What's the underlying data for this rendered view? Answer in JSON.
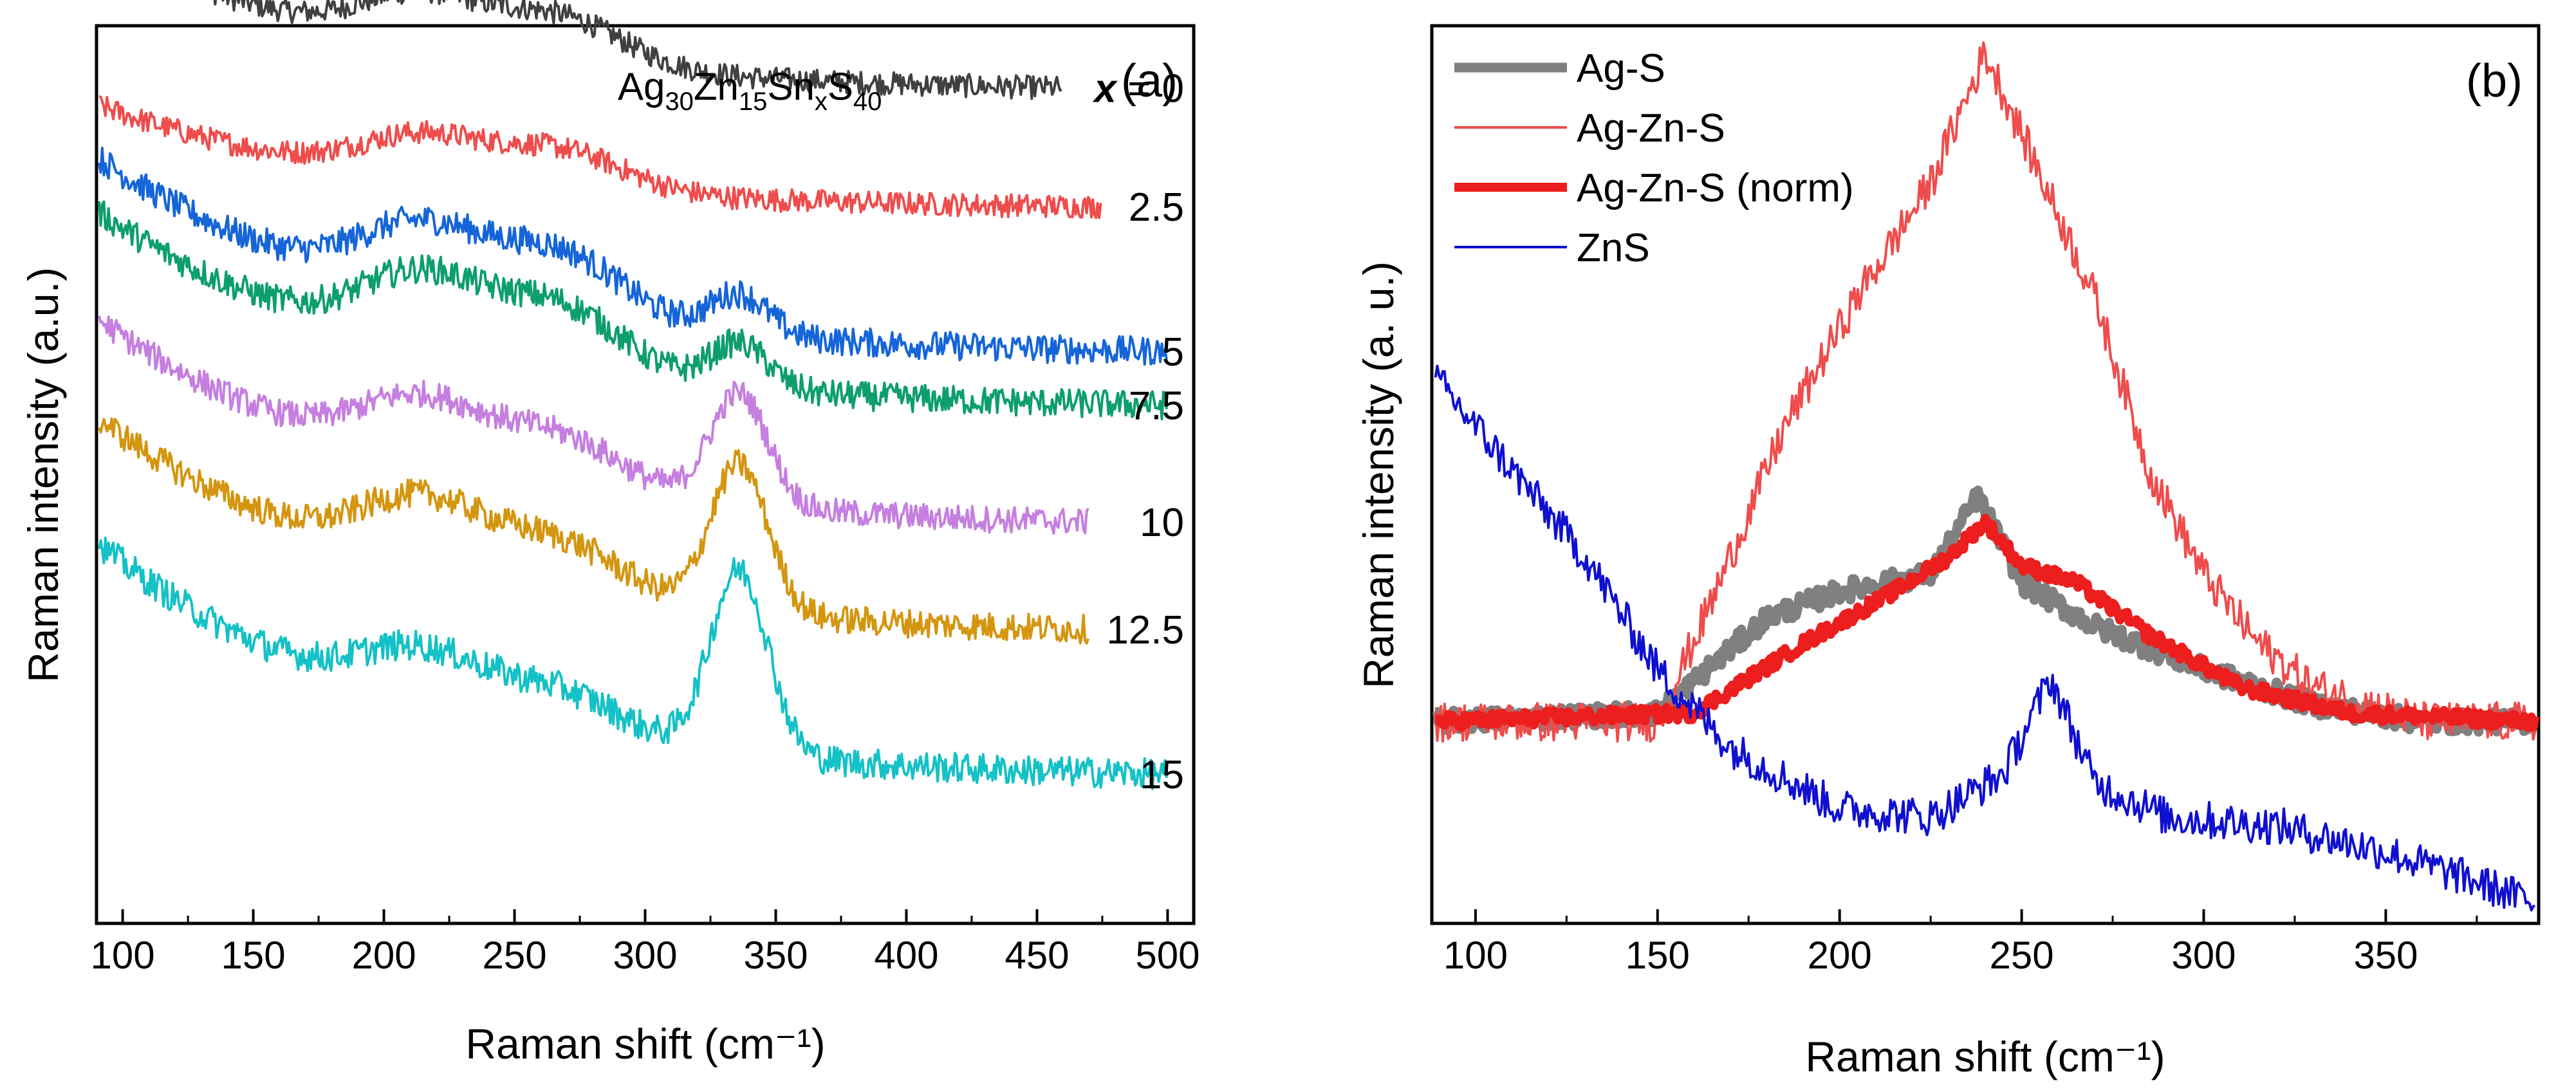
{
  "chart_data": [
    {
      "panel": "a",
      "type": "line",
      "panel_label": "(a)",
      "annotation": {
        "base": "Ag",
        "s1": "30",
        "e2": "Zn",
        "s2": "15",
        "e3": "Sn",
        "s3": "x",
        "e4": "S",
        "s4": "40"
      },
      "xlabel": "Raman shift (cm⁻¹)",
      "ylabel": "Raman intensity (a.u.)",
      "xlim": [
        90,
        510
      ],
      "ylim": [
        0,
        100
      ],
      "x_ticks": [
        "100",
        "150",
        "200",
        "250",
        "300",
        "350",
        "400",
        "450",
        "500"
      ],
      "x_tick_values": [
        100,
        150,
        200,
        250,
        300,
        350,
        400,
        450,
        500
      ],
      "x_var": "x",
      "x_eq": " = ",
      "series": [
        {
          "name": "0",
          "label": "0",
          "color": "#404040",
          "x_end": 460,
          "offset": 91,
          "start": 18,
          "p220": 5.5,
          "p270": 5.0,
          "p335": 0.0,
          "end_val": 1.5,
          "noise": 1.3
        },
        {
          "name": "2.5",
          "label": "2.5",
          "color": "#ef4c4c",
          "x_end": 475,
          "offset": 79,
          "start": 12,
          "p220": 4.5,
          "p270": 4.2,
          "p335": 0.0,
          "end_val": 0.5,
          "noise": 1.3
        },
        {
          "name": "5",
          "label": "5",
          "color": "#1565d8",
          "x_end": 500,
          "offset": 64,
          "start": 21,
          "p220": 7.5,
          "p270": 7.0,
          "p335": 4.5,
          "end_val": -0.8,
          "noise": 1.6
        },
        {
          "name": "7.5",
          "label": "7.5",
          "color": "#0d9e6e",
          "x_end": 500,
          "offset": 58,
          "start": 21,
          "p220": 8.0,
          "p270": 7.0,
          "p335": 5.0,
          "end_val": -0.8,
          "noise": 1.6
        },
        {
          "name": "10",
          "label": "10",
          "color": "#c57fe0",
          "x_end": 470,
          "offset": 45,
          "start": 22,
          "p220": 7.0,
          "p270": 5.5,
          "p335": 12.5,
          "end_val": -1.0,
          "noise": 1.5
        },
        {
          "name": "12.5",
          "label": "12.5",
          "color": "#d4950f",
          "x_end": 470,
          "offset": 33,
          "start": 23,
          "p220": 7.5,
          "p270": 5.5,
          "p335": 16.5,
          "end_val": -1.0,
          "noise": 1.6
        },
        {
          "name": "15",
          "label": "15",
          "color": "#14c1c6",
          "x_end": 500,
          "offset": 19,
          "start": 23,
          "p220": 6.0,
          "p270": 4.5,
          "p335": 20.5,
          "end_val": -3.0,
          "noise": 1.7
        }
      ]
    },
    {
      "panel": "b",
      "type": "line",
      "panel_label": "(b)",
      "xlabel": "Raman shift (cm⁻¹)",
      "ylabel": "Raman intensity (a. u.)",
      "xlim": [
        88,
        392
      ],
      "ylim": [
        0,
        100
      ],
      "x_ticks": [
        "100",
        "150",
        "200",
        "250",
        "300",
        "350"
      ],
      "x_tick_values": [
        100,
        150,
        200,
        250,
        300,
        350
      ],
      "legend_position": "top-left",
      "series": [
        {
          "name": "Ag-S",
          "color": "#808080",
          "width": 15,
          "noise": 1.2,
          "base": 21,
          "points": [
            [
              88,
              21
            ],
            [
              150,
              22
            ],
            [
              180,
              33
            ],
            [
              200,
              36
            ],
            [
              225,
              38
            ],
            [
              238,
              47
            ],
            [
              250,
              37
            ],
            [
              270,
              32
            ],
            [
              300,
              27
            ],
            [
              330,
              23
            ],
            [
              360,
              21
            ],
            [
              392,
              21
            ]
          ]
        },
        {
          "name": "Ag-Zn-S",
          "color": "#ef4c4c",
          "width": 4,
          "noise": 2.3,
          "base": 21,
          "points": [
            [
              88,
              21
            ],
            [
              150,
              21
            ],
            [
              165,
              35
            ],
            [
              185,
              55
            ],
            [
              205,
              70
            ],
            [
              225,
              83
            ],
            [
              240,
              98
            ],
            [
              255,
              84
            ],
            [
              270,
              70
            ],
            [
              285,
              50
            ],
            [
              300,
              38
            ],
            [
              315,
              30
            ],
            [
              330,
              25
            ],
            [
              360,
              21
            ],
            [
              392,
              21
            ]
          ]
        },
        {
          "name": "Ag-Zn-S (norm)",
          "color": "#ec1e1e",
          "width": 14,
          "noise": 0.8,
          "base": 21,
          "points": [
            [
              88,
              21
            ],
            [
              160,
              22
            ],
            [
              190,
              30
            ],
            [
              215,
              36
            ],
            [
              230,
              40
            ],
            [
              240,
              44
            ],
            [
              250,
              39
            ],
            [
              265,
              37
            ],
            [
              285,
              31
            ],
            [
              310,
              25
            ],
            [
              340,
              22
            ],
            [
              392,
              21
            ]
          ]
        },
        {
          "name": "ZnS",
          "color": "#1010d0",
          "width": 4,
          "noise": 2.2,
          "base": 0,
          "points": [
            [
              90,
              60
            ],
            [
              110,
              50
            ],
            [
              130,
              40
            ],
            [
              150,
              27
            ],
            [
              170,
              18
            ],
            [
              200,
              11
            ],
            [
              225,
              10
            ],
            [
              245,
              15
            ],
            [
              258,
              26
            ],
            [
              270,
              14
            ],
            [
              290,
              10
            ],
            [
              320,
              9
            ],
            [
              350,
              6
            ],
            [
              372,
              3
            ],
            [
              392,
              0
            ]
          ]
        }
      ]
    }
  ]
}
